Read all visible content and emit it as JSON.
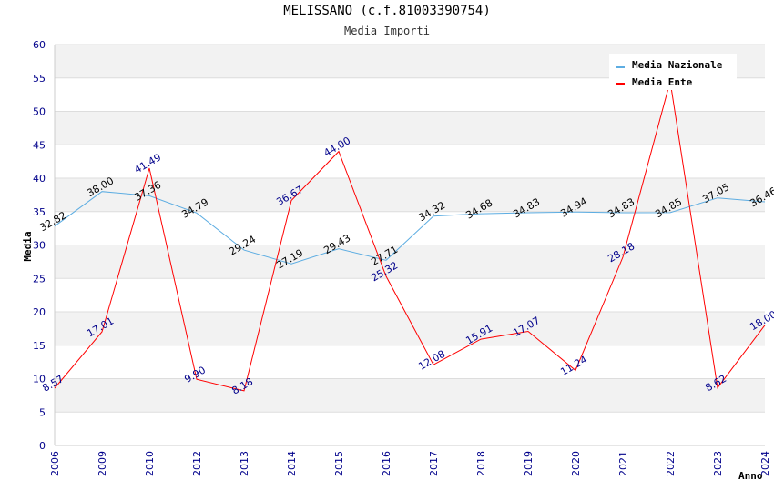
{
  "chart_data": {
    "type": "line",
    "title": "MELISSANO (c.f.81003390754)",
    "subtitle": "Media Importi",
    "xlabel": "Anno",
    "ylabel": "Media",
    "ylim": [
      0,
      60
    ],
    "yticks": [
      0,
      5,
      10,
      15,
      20,
      25,
      30,
      35,
      40,
      45,
      50,
      55,
      60
    ],
    "categories": [
      "2006",
      "2009",
      "2010",
      "2012",
      "2013",
      "2014",
      "2015",
      "2016",
      "2017",
      "2018",
      "2019",
      "2020",
      "2021",
      "2022",
      "2023",
      "2024"
    ],
    "series": [
      {
        "name": "Media Nazionale",
        "color": "#5dade2",
        "values": [
          32.82,
          38.0,
          37.36,
          34.79,
          29.24,
          27.19,
          29.43,
          27.71,
          34.32,
          34.68,
          34.83,
          34.94,
          34.83,
          34.85,
          37.05,
          36.46
        ],
        "labels": [
          "32.82",
          "38.00",
          "37.36",
          "34.79",
          "29.24",
          "27.19",
          "29.43",
          "27.71",
          "34.32",
          "34.68",
          "34.83",
          "34.94",
          "34.83",
          "34.85",
          "37.05",
          "36.46"
        ]
      },
      {
        "name": "Media Ente",
        "color": "#ff0000",
        "values": [
          8.57,
          17.01,
          41.49,
          9.9,
          8.18,
          36.67,
          44.0,
          25.32,
          12.08,
          15.91,
          17.07,
          11.24,
          28.18,
          54.5,
          8.62,
          18.0
        ],
        "labels": [
          "8.57",
          "17.01",
          "41.49",
          "9.90",
          "8.18",
          "36.67",
          "44.00",
          "25.32",
          "12.08",
          "15.91",
          "17.07",
          "11.24",
          "28.18",
          "",
          "8.62",
          "18.00"
        ]
      }
    ],
    "legend": "top-right",
    "grid": true
  }
}
